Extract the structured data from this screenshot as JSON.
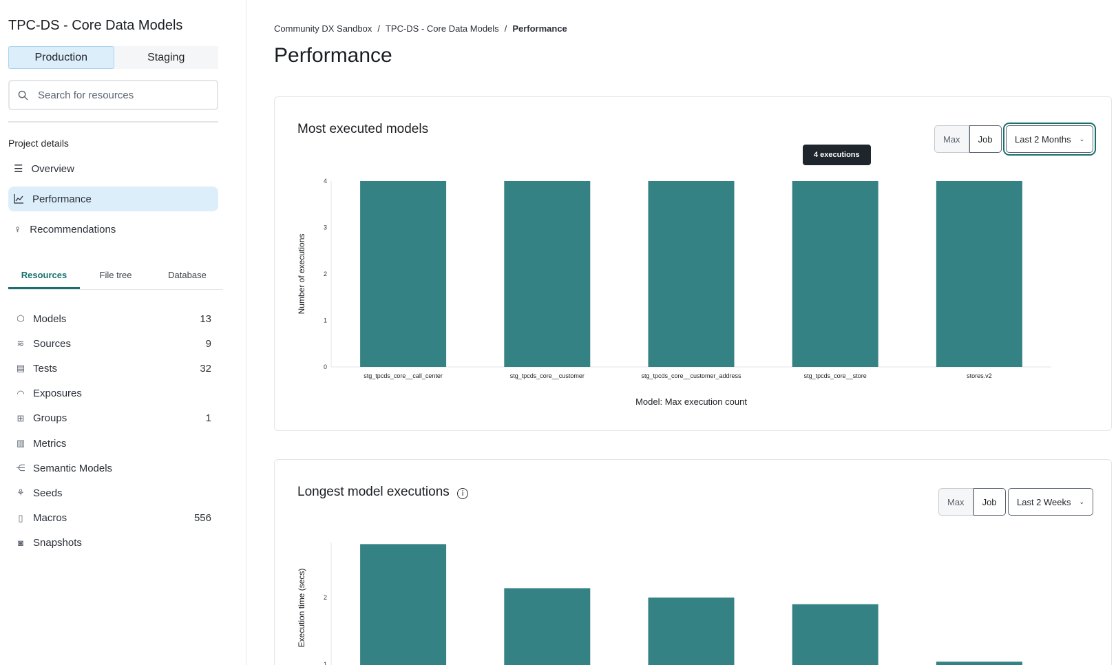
{
  "sidebar": {
    "project_title": "TPC-DS - Core Data Models",
    "env_tabs": [
      {
        "label": "Production",
        "active": true
      },
      {
        "label": "Staging",
        "active": false
      }
    ],
    "search_placeholder": "Search for resources",
    "section_label": "Project details",
    "nav": [
      {
        "label": "Overview",
        "icon": "list-icon"
      },
      {
        "label": "Performance",
        "icon": "line-chart-icon",
        "active": true
      },
      {
        "label": "Recommendations",
        "icon": "lightbulb-icon"
      }
    ],
    "tabs": [
      {
        "label": "Resources",
        "active": true
      },
      {
        "label": "File tree"
      },
      {
        "label": "Database"
      }
    ],
    "resources": [
      {
        "label": "Models",
        "count": "13",
        "icon": "cube-icon"
      },
      {
        "label": "Sources",
        "count": "9",
        "icon": "database-icon"
      },
      {
        "label": "Tests",
        "count": "32",
        "icon": "clipboard-icon"
      },
      {
        "label": "Exposures",
        "count": "",
        "icon": "gauge-icon"
      },
      {
        "label": "Groups",
        "count": "1",
        "icon": "grid-icon"
      },
      {
        "label": "Metrics",
        "count": "",
        "icon": "bar-chart-icon"
      },
      {
        "label": "Semantic Models",
        "count": "",
        "icon": "graph-icon"
      },
      {
        "label": "Seeds",
        "count": "",
        "icon": "seedling-icon"
      },
      {
        "label": "Macros",
        "count": "556",
        "icon": "file-icon"
      },
      {
        "label": "Snapshots",
        "count": "",
        "icon": "camera-icon"
      }
    ]
  },
  "breadcrumb": [
    "Community DX Sandbox",
    "TPC-DS - Core Data Models",
    "Performance"
  ],
  "page_title": "Performance",
  "cards": [
    {
      "title": "Most executed models",
      "seg": [
        "Max",
        "Job"
      ],
      "dropdown": "Last 2 Months",
      "tooltip": "4 executions"
    },
    {
      "title": "Longest model executions",
      "seg": [
        "Max",
        "Job"
      ],
      "dropdown": "Last 2 Weeks"
    }
  ],
  "chart_data": [
    {
      "type": "bar",
      "categories": [
        "stg_tpcds_core__call_center",
        "stg_tpcds_core__customer",
        "stg_tpcds_core__customer_address",
        "stg_tpcds_core__store",
        "stores.v2"
      ],
      "values": [
        4,
        4,
        4,
        4,
        4
      ],
      "xlabel": "Model: Max execution count",
      "ylabel": "Number of executions",
      "ylim": [
        0,
        4
      ],
      "yticks": [
        0,
        1,
        2,
        3,
        4
      ],
      "color": "#358284"
    },
    {
      "type": "bar",
      "values": [
        2.8,
        2.14,
        2.0,
        1.9,
        1.04
      ],
      "ylabel": "Execution time (secs)",
      "yticks": [
        1,
        2
      ],
      "color": "#358284"
    }
  ]
}
